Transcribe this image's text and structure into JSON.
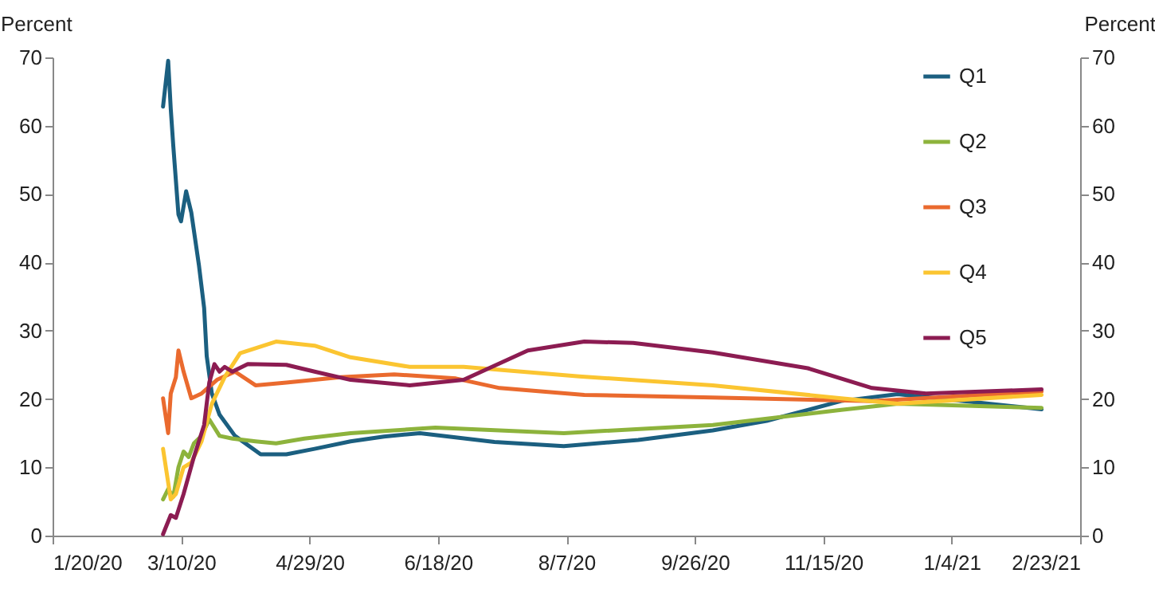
{
  "chart_data": {
    "type": "line",
    "ylabel": "Percent",
    "y2label": "Percent",
    "legend": "top right",
    "grid": false,
    "xlim": [
      "2020-01-20",
      "2021-02-23"
    ],
    "xticks": [
      {
        "value": "2020-01-20",
        "label": "1/20/20"
      },
      {
        "value": "2020-03-10",
        "label": "3/10/20"
      },
      {
        "value": "2020-04-29",
        "label": "4/29/20"
      },
      {
        "value": "2020-06-18",
        "label": "6/18/20"
      },
      {
        "value": "2020-08-07",
        "label": "8/7/20"
      },
      {
        "value": "2020-09-26",
        "label": "9/26/20"
      },
      {
        "value": "2020-11-15",
        "label": "11/15/20"
      },
      {
        "value": "2021-01-04",
        "label": "1/4/21"
      },
      {
        "value": "2021-02-23",
        "label": "2/23/21"
      }
    ],
    "ylim": [
      0,
      70
    ],
    "yticks": [
      0,
      10,
      20,
      30,
      40,
      50,
      60,
      70
    ],
    "y2lim": [
      0,
      70
    ],
    "y2ticks": [
      0,
      10,
      20,
      30,
      40,
      50,
      60,
      70
    ],
    "series": [
      {
        "name": "Q1",
        "color": "#1b5f80",
        "x": [
          "2020-03-03",
          "2020-03-05",
          "2020-03-06",
          "2020-03-07",
          "2020-03-09",
          "2020-03-10",
          "2020-03-12",
          "2020-03-14",
          "2020-03-17",
          "2020-03-19",
          "2020-03-20",
          "2020-03-22",
          "2020-03-25",
          "2020-03-31",
          "2020-04-10",
          "2020-04-20",
          "2020-05-01",
          "2020-05-15",
          "2020-05-28",
          "2020-06-11",
          "2020-07-10",
          "2020-08-06",
          "2020-09-04",
          "2020-10-03",
          "2020-10-24",
          "2020-11-22",
          "2020-12-14",
          "2021-01-06",
          "2021-02-08"
        ],
        "values": [
          62.8,
          69.5,
          62.5,
          57,
          47,
          46,
          50.4,
          47.3,
          39.5,
          33.3,
          26.3,
          20.8,
          17.7,
          14.6,
          11.9,
          11.9,
          12.7,
          13.8,
          14.5,
          15.0,
          13.7,
          13.1,
          14.0,
          15.4,
          16.8,
          19.7,
          20.7,
          19.8,
          18.5
        ]
      },
      {
        "name": "Q2",
        "color": "#8db33c",
        "x": [
          "2020-03-03",
          "2020-03-05",
          "2020-03-07",
          "2020-03-09",
          "2020-03-11",
          "2020-03-13",
          "2020-03-15",
          "2020-03-18",
          "2020-03-21",
          "2020-03-25",
          "2020-03-30",
          "2020-04-08",
          "2020-04-16",
          "2020-04-27",
          "2020-05-15",
          "2020-06-17",
          "2020-08-06",
          "2020-10-03",
          "2020-11-22",
          "2020-12-14",
          "2021-02-08"
        ],
        "values": [
          5.3,
          6.8,
          5.7,
          10,
          12.3,
          11.5,
          13.5,
          14.6,
          17,
          14.6,
          14.2,
          13.8,
          13.5,
          14.2,
          15.0,
          15.8,
          15.0,
          16.2,
          18.4,
          19.3,
          18.7
        ]
      },
      {
        "name": "Q3",
        "color": "#ea6a2e",
        "x": [
          "2020-03-03",
          "2020-03-05",
          "2020-03-06",
          "2020-03-08",
          "2020-03-09",
          "2020-03-11",
          "2020-03-14",
          "2020-03-18",
          "2020-03-24",
          "2020-03-31",
          "2020-04-08",
          "2020-04-20",
          "2020-05-11",
          "2020-06-01",
          "2020-06-25",
          "2020-07-12",
          "2020-08-14",
          "2020-10-03",
          "2020-12-04",
          "2021-02-08"
        ],
        "values": [
          20.1,
          15.0,
          20.8,
          23.2,
          27.1,
          24,
          20.1,
          20.8,
          22.8,
          24,
          22.0,
          22.4,
          23.2,
          23.6,
          23.0,
          21.6,
          20.6,
          20.2,
          19.7,
          21.1
        ]
      },
      {
        "name": "Q4",
        "color": "#fbc531",
        "x": [
          "2020-03-03",
          "2020-03-06",
          "2020-03-08",
          "2020-03-11",
          "2020-03-14",
          "2020-03-18",
          "2020-03-22",
          "2020-03-27",
          "2020-04-02",
          "2020-04-16",
          "2020-05-01",
          "2020-05-15",
          "2020-06-07",
          "2020-06-28",
          "2020-08-12",
          "2020-10-03",
          "2020-11-22",
          "2020-12-14",
          "2021-02-08"
        ],
        "values": [
          12.7,
          5.3,
          6.1,
          10,
          10.7,
          13.8,
          19.3,
          23.2,
          26.7,
          28.4,
          27.8,
          26.1,
          24.7,
          24.7,
          23.3,
          22.0,
          20.1,
          19.3,
          20.6
        ]
      },
      {
        "name": "Q5",
        "color": "#8c1c52",
        "x": [
          "2020-03-03",
          "2020-03-06",
          "2020-03-08",
          "2020-03-11",
          "2020-03-15",
          "2020-03-19",
          "2020-03-21",
          "2020-03-23",
          "2020-03-25",
          "2020-03-27",
          "2020-03-30",
          "2020-04-05",
          "2020-04-20",
          "2020-05-01",
          "2020-05-15",
          "2020-06-07",
          "2020-06-28",
          "2020-07-23",
          "2020-08-14",
          "2020-09-02",
          "2020-10-03",
          "2020-11-09",
          "2020-12-04",
          "2020-12-25",
          "2021-02-08"
        ],
        "values": [
          0.2,
          3.0,
          2.6,
          6.1,
          11.5,
          16.2,
          22.4,
          25.1,
          24,
          24.7,
          24,
          25.1,
          25.0,
          24,
          22.8,
          22.0,
          22.8,
          27.1,
          28.4,
          28.2,
          26.8,
          24.5,
          21.6,
          20.8,
          21.4
        ]
      }
    ]
  }
}
